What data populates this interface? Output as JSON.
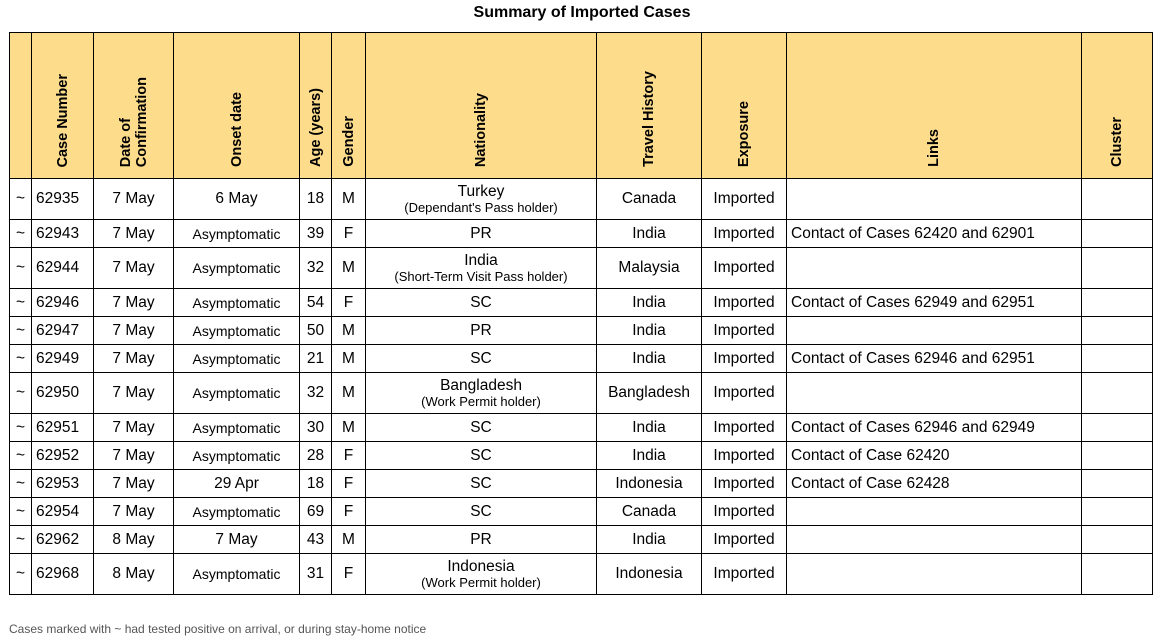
{
  "title": "Summary of Imported Cases",
  "columns": {
    "case_number": "Case Number",
    "date_of_confirmation": "Date of\nConfirmation",
    "onset_date": "Onset date",
    "age": "Age (years)",
    "gender": "Gender",
    "nationality": "Nationality",
    "travel_history": "Travel History",
    "exposure": "Exposure",
    "links": "Links",
    "cluster": "Cluster"
  },
  "rows": [
    {
      "marker": "~",
      "case": "62935",
      "confirmed": "7 May",
      "onset": "6 May",
      "age": "18",
      "gender": "M",
      "nationality": "Turkey",
      "pass": "(Dependant's Pass holder)",
      "travel": "Canada",
      "exposure": "Imported",
      "links": "",
      "cluster": ""
    },
    {
      "marker": "~",
      "case": "62943",
      "confirmed": "7 May",
      "onset": "Asymptomatic",
      "age": "39",
      "gender": "F",
      "nationality": "PR",
      "pass": "",
      "travel": "India",
      "exposure": "Imported",
      "links": "Contact of Cases 62420 and 62901",
      "cluster": ""
    },
    {
      "marker": "~",
      "case": "62944",
      "confirmed": "7 May",
      "onset": "Asymptomatic",
      "age": "32",
      "gender": "M",
      "nationality": "India",
      "pass": "(Short-Term Visit Pass holder)",
      "travel": "Malaysia",
      "exposure": "Imported",
      "links": "",
      "cluster": ""
    },
    {
      "marker": "~",
      "case": "62946",
      "confirmed": "7 May",
      "onset": "Asymptomatic",
      "age": "54",
      "gender": "F",
      "nationality": "SC",
      "pass": "",
      "travel": "India",
      "exposure": "Imported",
      "links": "Contact of Cases 62949 and 62951",
      "cluster": ""
    },
    {
      "marker": "~",
      "case": "62947",
      "confirmed": "7 May",
      "onset": "Asymptomatic",
      "age": "50",
      "gender": "M",
      "nationality": "PR",
      "pass": "",
      "travel": "India",
      "exposure": "Imported",
      "links": "",
      "cluster": ""
    },
    {
      "marker": "~",
      "case": "62949",
      "confirmed": "7 May",
      "onset": "Asymptomatic",
      "age": "21",
      "gender": "M",
      "nationality": "SC",
      "pass": "",
      "travel": "India",
      "exposure": "Imported",
      "links": "Contact of Cases 62946 and 62951",
      "cluster": ""
    },
    {
      "marker": "~",
      "case": "62950",
      "confirmed": "7 May",
      "onset": "Asymptomatic",
      "age": "32",
      "gender": "M",
      "nationality": "Bangladesh",
      "pass": "(Work Permit holder)",
      "travel": "Bangladesh",
      "exposure": "Imported",
      "links": "",
      "cluster": ""
    },
    {
      "marker": "~",
      "case": "62951",
      "confirmed": "7 May",
      "onset": "Asymptomatic",
      "age": "30",
      "gender": "M",
      "nationality": "SC",
      "pass": "",
      "travel": "India",
      "exposure": "Imported",
      "links": "Contact of Cases 62946 and 62949",
      "cluster": ""
    },
    {
      "marker": "~",
      "case": "62952",
      "confirmed": "7 May",
      "onset": "Asymptomatic",
      "age": "28",
      "gender": "F",
      "nationality": "SC",
      "pass": "",
      "travel": "India",
      "exposure": "Imported",
      "links": "Contact of Case 62420",
      "cluster": ""
    },
    {
      "marker": "~",
      "case": "62953",
      "confirmed": "7 May",
      "onset": "29 Apr",
      "age": "18",
      "gender": "F",
      "nationality": "SC",
      "pass": "",
      "travel": "Indonesia",
      "exposure": "Imported",
      "links": "Contact of Case 62428",
      "cluster": ""
    },
    {
      "marker": "~",
      "case": "62954",
      "confirmed": "7 May",
      "onset": "Asymptomatic",
      "age": "69",
      "gender": "F",
      "nationality": "SC",
      "pass": "",
      "travel": "Canada",
      "exposure": "Imported",
      "links": "",
      "cluster": ""
    },
    {
      "marker": "~",
      "case": "62962",
      "confirmed": "8 May",
      "onset": "7 May",
      "age": "43",
      "gender": "M",
      "nationality": "PR",
      "pass": "",
      "travel": "India",
      "exposure": "Imported",
      "links": "",
      "cluster": ""
    },
    {
      "marker": "~",
      "case": "62968",
      "confirmed": "8 May",
      "onset": "Asymptomatic",
      "age": "31",
      "gender": "F",
      "nationality": "Indonesia",
      "pass": "(Work Permit holder)",
      "travel": "Indonesia",
      "exposure": "Imported",
      "links": "",
      "cluster": ""
    }
  ],
  "footnote": "Cases marked with ~ had tested positive on arrival, or during stay-home notice"
}
